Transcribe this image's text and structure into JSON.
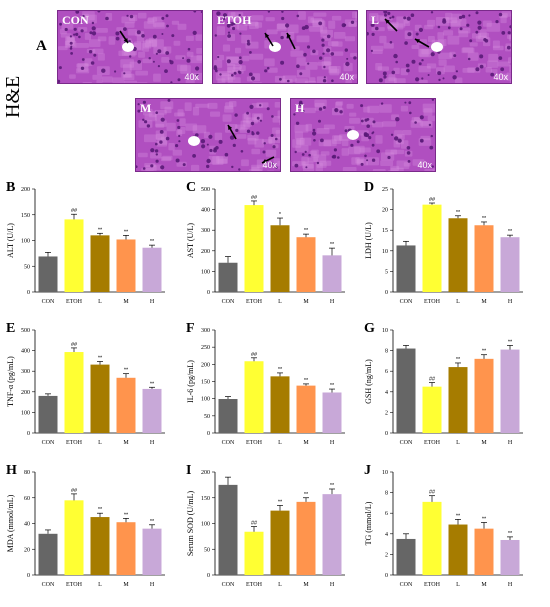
{
  "figure": {
    "panel_a_letter": "A",
    "he_label": "H&E",
    "histology": [
      {
        "title": "CON",
        "magnification": "40x"
      },
      {
        "title": "ETOH",
        "magnification": "40x"
      },
      {
        "title": "L",
        "magnification": "40x"
      },
      {
        "title": "M",
        "magnification": "40x"
      },
      {
        "title": "H",
        "magnification": "40x"
      }
    ],
    "colors": {
      "CON": "#666666",
      "ETOH": "#ffff33",
      "L": "#a67c00",
      "M": "#ff944d",
      "H": "#c8a8d8",
      "stain": "#b04fc0",
      "stain_dark": "#5a1a78"
    }
  },
  "chart_data": [
    {
      "panel": "B",
      "type": "bar",
      "categories": [
        "CON",
        "ETOH",
        "L",
        "M",
        "H"
      ],
      "ylabel": "ALT (U/L)",
      "ylim": [
        0,
        200
      ],
      "yticks": [
        0,
        50,
        100,
        150,
        200
      ],
      "values": [
        69,
        141,
        110,
        102,
        86
      ],
      "errors": [
        8,
        10,
        4,
        8,
        5
      ],
      "annotations": [
        "",
        "##",
        "**",
        "**",
        "**"
      ]
    },
    {
      "panel": "C",
      "type": "bar",
      "categories": [
        "CON",
        "ETOH",
        "L",
        "M",
        "H"
      ],
      "ylabel": "AST (U/L)",
      "ylim": [
        0,
        500
      ],
      "yticks": [
        0,
        100,
        200,
        300,
        400,
        500
      ],
      "values": [
        142,
        422,
        324,
        266,
        178
      ],
      "errors": [
        30,
        20,
        35,
        15,
        35
      ],
      "annotations": [
        "",
        "##",
        "*",
        "**",
        "**"
      ]
    },
    {
      "panel": "D",
      "type": "bar",
      "categories": [
        "CON",
        "ETOH",
        "L",
        "M",
        "H"
      ],
      "ylabel": "LDH (U/L)",
      "ylim": [
        0,
        25
      ],
      "yticks": [
        0,
        5,
        10,
        15,
        20,
        25
      ],
      "values": [
        11.3,
        21.2,
        17.9,
        16.2,
        13.3
      ],
      "errors": [
        1.0,
        0.4,
        0.6,
        0.8,
        0.5
      ],
      "annotations": [
        "",
        "##",
        "**",
        "**",
        "**"
      ]
    },
    {
      "panel": "E",
      "type": "bar",
      "categories": [
        "CON",
        "ETOH",
        "L",
        "M",
        "H"
      ],
      "ylabel": "TNF-α (pg/mL)",
      "ylim": [
        0,
        500
      ],
      "yticks": [
        0,
        100,
        200,
        300,
        400,
        500
      ],
      "values": [
        180,
        393,
        332,
        268,
        214
      ],
      "errors": [
        10,
        20,
        15,
        20,
        8
      ],
      "annotations": [
        "",
        "##",
        "**",
        "**",
        "**"
      ]
    },
    {
      "panel": "F",
      "type": "bar",
      "categories": [
        "CON",
        "ETOH",
        "L",
        "M",
        "H"
      ],
      "ylabel": "IL-6 (pg/mL)",
      "ylim": [
        0,
        300
      ],
      "yticks": [
        0,
        50,
        100,
        150,
        200,
        250,
        300
      ],
      "values": [
        99,
        209,
        165,
        138,
        118
      ],
      "errors": [
        7,
        10,
        10,
        5,
        10
      ],
      "annotations": [
        "",
        "##",
        "**",
        "**",
        "**"
      ]
    },
    {
      "panel": "G",
      "type": "bar",
      "categories": [
        "CON",
        "ETOH",
        "L",
        "M",
        "H"
      ],
      "ylabel": "GSH (ng/mL)",
      "ylim": [
        0,
        10
      ],
      "yticks": [
        0,
        2,
        4,
        6,
        8,
        10
      ],
      "values": [
        8.2,
        4.5,
        6.4,
        7.2,
        8.1
      ],
      "errors": [
        0.3,
        0.4,
        0.4,
        0.4,
        0.4
      ],
      "annotations": [
        "",
        "##",
        "**",
        "**",
        "**"
      ]
    },
    {
      "panel": "H",
      "type": "bar",
      "categories": [
        "CON",
        "ETOH",
        "L",
        "M",
        "H"
      ],
      "ylabel": "MDA (mmol/mL)",
      "ylim": [
        0,
        80
      ],
      "yticks": [
        0,
        20,
        40,
        60,
        80
      ],
      "values": [
        32,
        58,
        45,
        41,
        36
      ],
      "errors": [
        3,
        5,
        3,
        3,
        3
      ],
      "annotations": [
        "",
        "##",
        "**",
        "**",
        "**"
      ]
    },
    {
      "panel": "I",
      "type": "bar",
      "categories": [
        "CON",
        "ETOH",
        "L",
        "M",
        "H"
      ],
      "ylabel": "Serum SOD (U/mL)",
      "ylim": [
        0,
        200
      ],
      "yticks": [
        0,
        50,
        100,
        150,
        200
      ],
      "values": [
        175,
        84,
        125,
        142,
        157
      ],
      "errors": [
        15,
        10,
        10,
        8,
        10
      ],
      "annotations": [
        "",
        "##",
        "**",
        "**",
        "**"
      ]
    },
    {
      "panel": "J",
      "type": "bar",
      "categories": [
        "CON",
        "ETOH",
        "L",
        "M",
        "H"
      ],
      "ylabel": "TG (mmol/L)",
      "ylim": [
        0,
        10
      ],
      "yticks": [
        0,
        2,
        4,
        6,
        8,
        10
      ],
      "values": [
        3.5,
        7.1,
        4.9,
        4.5,
        3.4
      ],
      "errors": [
        0.5,
        0.6,
        0.5,
        0.6,
        0.3
      ],
      "annotations": [
        "",
        "##",
        "**",
        "**",
        "**"
      ]
    }
  ]
}
